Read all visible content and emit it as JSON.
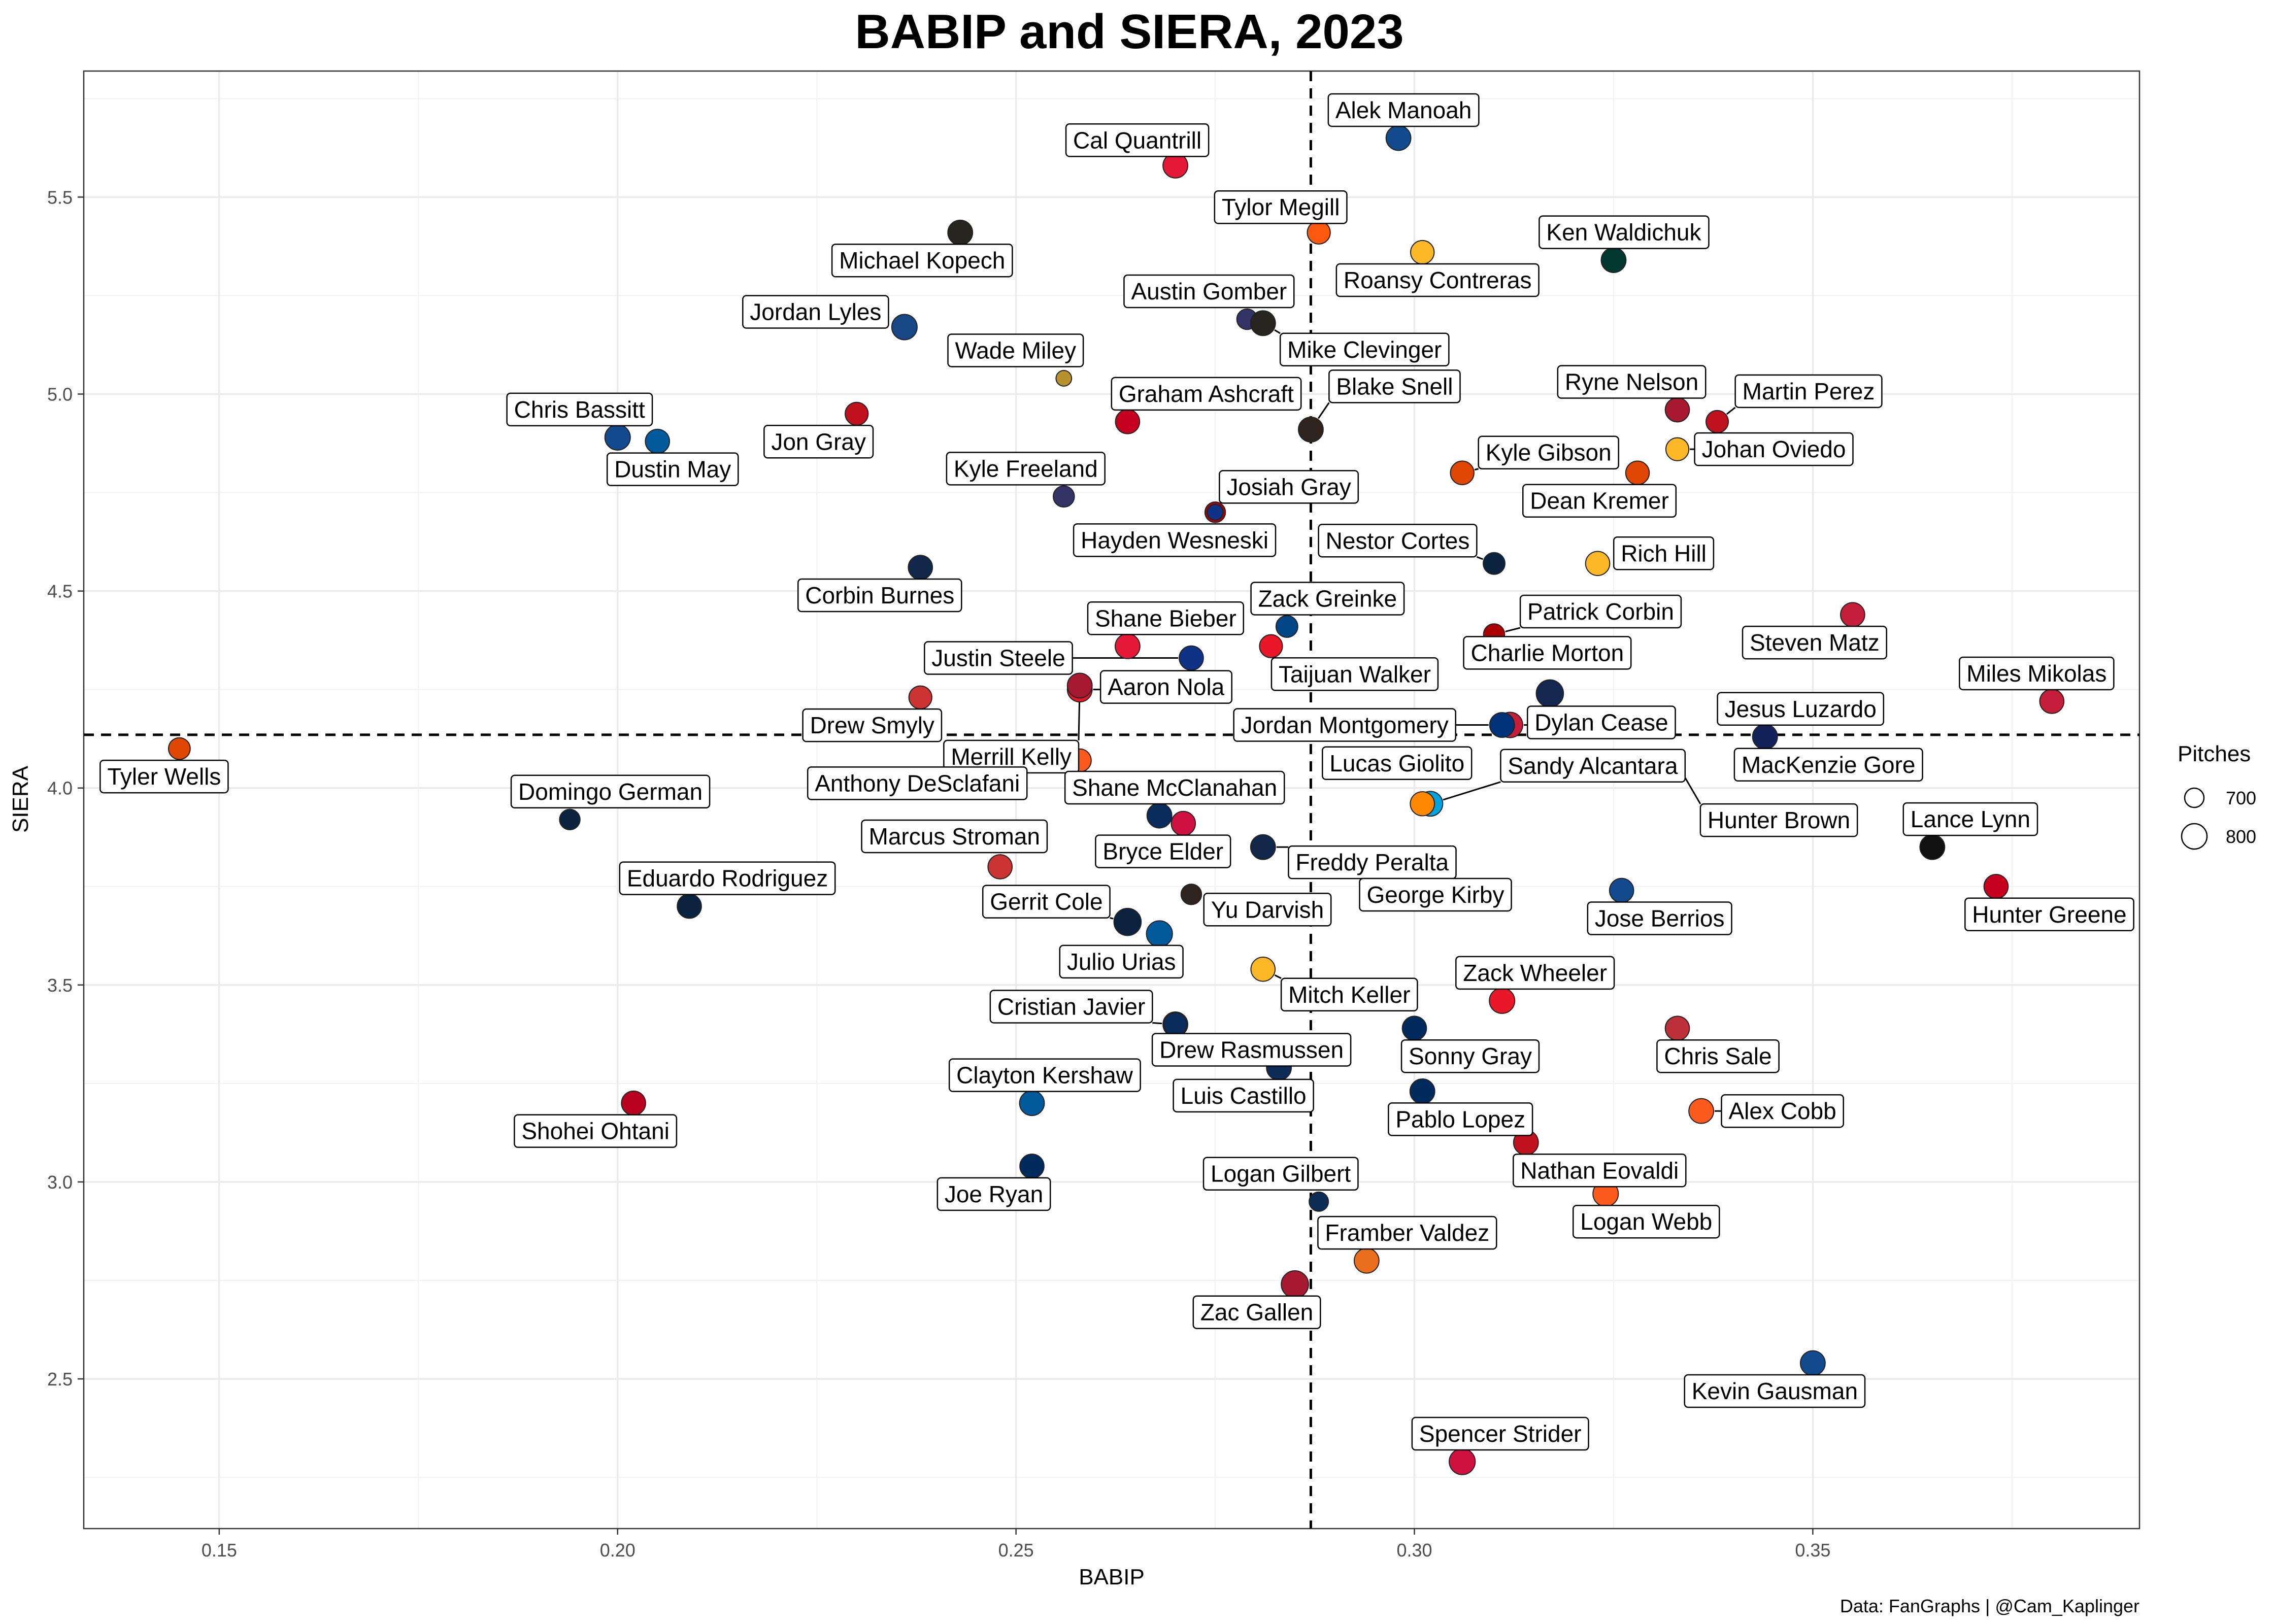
{
  "chart_data": {
    "type": "scatter",
    "title": "BABIP and SIERA, 2023",
    "xlabel": "BABIP",
    "ylabel": "SIERA",
    "caption": "Data: FanGraphs | @Cam_Kaplinger",
    "xlim": [
      0.133,
      0.391
    ],
    "ylim": [
      2.12,
      5.82
    ],
    "x_ticks": [
      0.15,
      0.2,
      0.25,
      0.3,
      0.35
    ],
    "x_tick_labels": [
      "0.15",
      "0.20",
      "0.25",
      "0.30",
      "0.35"
    ],
    "y_ticks": [
      2.5,
      3.0,
      3.5,
      4.0,
      4.5,
      5.0,
      5.5
    ],
    "y_tick_labels": [
      "2.5",
      "3.0",
      "3.5",
      "4.0",
      "4.5",
      "5.0",
      "5.5"
    ],
    "grid": true,
    "reference_lines": {
      "x": 0.287,
      "y": 4.135
    },
    "legend": {
      "title": "Pitches",
      "position": "right",
      "sizes": [
        700,
        800
      ],
      "labels": [
        "700",
        "800"
      ]
    },
    "points": [
      {
        "name": "Alek Manoah",
        "x": 0.298,
        "y": 5.65,
        "pitches": 790,
        "color": "#134A8E",
        "label_dx": 10,
        "label_dy": -55
      },
      {
        "name": "Cal Quantrill",
        "x": 0.27,
        "y": 5.58,
        "pitches": 790,
        "color": "#E31937",
        "label_dx": -75,
        "label_dy": -50
      },
      {
        "name": "Tylor Megill",
        "x": 0.288,
        "y": 5.41,
        "pitches": 760,
        "color": "#FF5910",
        "label_dx": -75,
        "label_dy": -50
      },
      {
        "name": "Michael Kopech",
        "x": 0.243,
        "y": 5.41,
        "pitches": 790,
        "color": "#27251F",
        "label_dx": -75,
        "label_dy": 55
      },
      {
        "name": "Roansy Contreras",
        "x": 0.301,
        "y": 5.36,
        "pitches": 770,
        "color": "#FDB827",
        "label_dx": 30,
        "label_dy": 55
      },
      {
        "name": "Ken Waldichuk",
        "x": 0.325,
        "y": 5.34,
        "pitches": 790,
        "color": "#003831",
        "label_dx": 20,
        "label_dy": -55
      },
      {
        "name": "Austin Gomber",
        "x": 0.279,
        "y": 5.19,
        "pitches": 720,
        "color": "#333366",
        "label_dx": -75,
        "label_dy": -55
      },
      {
        "name": "Mike Clevinger",
        "x": 0.281,
        "y": 5.18,
        "pitches": 790,
        "color": "#27251F",
        "label_dx": 200,
        "label_dy": 52
      },
      {
        "name": "Jordan Lyles",
        "x": 0.236,
        "y": 5.17,
        "pitches": 800,
        "color": "#174885",
        "label_dx": -175,
        "label_dy": -30
      },
      {
        "name": "Wade Miley",
        "x": 0.256,
        "y": 5.04,
        "pitches": 640,
        "color": "#B6922E",
        "label_dx": -95,
        "label_dy": -55
      },
      {
        "name": "Graham Ashcraft",
        "x": 0.264,
        "y": 4.93,
        "pitches": 780,
        "color": "#C6011F",
        "label_dx": 155,
        "label_dy": -55
      },
      {
        "name": "Jon Gray",
        "x": 0.23,
        "y": 4.95,
        "pitches": 760,
        "color": "#C0111F",
        "label_dx": -75,
        "label_dy": 55
      },
      {
        "name": "Ryne Nelson",
        "x": 0.333,
        "y": 4.96,
        "pitches": 780,
        "color": "#A71930",
        "label_dx": -90,
        "label_dy": -55
      },
      {
        "name": "Martin Perez",
        "x": 0.338,
        "y": 4.93,
        "pitches": 750,
        "color": "#C0111F",
        "label_dx": 180,
        "label_dy": -60
      },
      {
        "name": "Blake Snell",
        "x": 0.287,
        "y": 4.91,
        "pitches": 790,
        "color": "#2F241D",
        "label_dx": 165,
        "label_dy": -85
      },
      {
        "name": "Chris Bassitt",
        "x": 0.2,
        "y": 4.89,
        "pitches": 800,
        "color": "#134A8E",
        "label_dx": -75,
        "label_dy": -55
      },
      {
        "name": "Dustin May",
        "x": 0.205,
        "y": 4.88,
        "pitches": 780,
        "color": "#005A9C",
        "label_dx": 30,
        "label_dy": 55
      },
      {
        "name": "Johan Oviedo",
        "x": 0.333,
        "y": 4.86,
        "pitches": 760,
        "color": "#FDB827",
        "label_dx": 190,
        "label_dy": 0
      },
      {
        "name": "Kyle Gibson",
        "x": 0.306,
        "y": 4.8,
        "pitches": 770,
        "color": "#DF4601",
        "label_dx": 170,
        "label_dy": -40
      },
      {
        "name": "Dean Kremer",
        "x": 0.328,
        "y": 4.8,
        "pitches": 770,
        "color": "#DF4601",
        "label_dx": -75,
        "label_dy": 55
      },
      {
        "name": "Kyle Freeland",
        "x": 0.256,
        "y": 4.74,
        "pitches": 730,
        "color": "#333366",
        "label_dx": -75,
        "label_dy": -55
      },
      {
        "name": "Josiah Gray",
        "x": 0.275,
        "y": 4.7,
        "pitches": 720,
        "color": "#AB0003",
        "label_dx": 145,
        "label_dy": -50
      },
      {
        "name": "Hayden Wesneski",
        "x": 0.275,
        "y": 4.7,
        "pitches": 640,
        "color": "#0E3386",
        "label_dx": -80,
        "label_dy": 55
      },
      {
        "name": "Nestor Cortes",
        "x": 0.31,
        "y": 4.57,
        "pitches": 740,
        "color": "#0C2340",
        "label_dx": -190,
        "label_dy": -45
      },
      {
        "name": "Rich Hill",
        "x": 0.323,
        "y": 4.57,
        "pitches": 780,
        "color": "#FDB827",
        "label_dx": 130,
        "label_dy": -20
      },
      {
        "name": "Corbin Burnes",
        "x": 0.238,
        "y": 4.56,
        "pitches": 780,
        "color": "#12284B",
        "label_dx": -80,
        "label_dy": 55
      },
      {
        "name": "Steven Matz",
        "x": 0.355,
        "y": 4.44,
        "pitches": 780,
        "color": "#C41E3A",
        "label_dx": -75,
        "label_dy": 55
      },
      {
        "name": "Zack Greinke",
        "x": 0.284,
        "y": 4.41,
        "pitches": 740,
        "color": "#004687",
        "label_dx": 80,
        "label_dy": -55
      },
      {
        "name": "Patrick Corbin",
        "x": 0.31,
        "y": 4.39,
        "pitches": 730,
        "color": "#AB0003",
        "label_dx": 210,
        "label_dy": -45
      },
      {
        "name": "Shane Bieber",
        "x": 0.264,
        "y": 4.36,
        "pitches": 790,
        "color": "#E31937",
        "label_dx": 75,
        "label_dy": -55
      },
      {
        "name": "Taijuan Walker",
        "x": 0.282,
        "y": 4.36,
        "pitches": 760,
        "color": "#E81828",
        "label_dx": 165,
        "label_dy": 55
      },
      {
        "name": "Justin Steele",
        "x": 0.272,
        "y": 4.33,
        "pitches": 780,
        "color": "#0E3386",
        "label_dx": -380,
        "label_dy": 0
      },
      {
        "name": "Charlie Morton",
        "x": 0.317,
        "y": 4.24,
        "pitches": 830,
        "color": "#13274F",
        "label_dx": -5,
        "label_dy": -80
      },
      {
        "name": "Aaron Nola",
        "x": 0.258,
        "y": 4.25,
        "pitches": 790,
        "color": "#E81828",
        "label_dx": 170,
        "label_dy": -5
      },
      {
        "name": "Miles Mikolas",
        "x": 0.38,
        "y": 4.22,
        "pitches": 780,
        "color": "#C41E3A",
        "label_dx": -30,
        "label_dy": -55
      },
      {
        "name": "Drew Smyly",
        "x": 0.238,
        "y": 4.23,
        "pitches": 760,
        "color": "#CC3433",
        "label_dx": -95,
        "label_dy": 55
      },
      {
        "name": "Dylan Cease",
        "x": 0.312,
        "y": 4.16,
        "pitches": 800,
        "color": "#C41E3A",
        "label_dx": 180,
        "label_dy": -5
      },
      {
        "name": "Jordan Montgomery",
        "x": 0.311,
        "y": 4.16,
        "pitches": 790,
        "color": "#003278",
        "label_dx": -310,
        "label_dy": 0
      },
      {
        "name": "Merrill Kelly",
        "x": 0.258,
        "y": 4.26,
        "pitches": 790,
        "color": "#A71930",
        "label_dx": -135,
        "label_dy": 140
      },
      {
        "name": "Jesus Luzardo",
        "x": 0.344,
        "y": 4.13,
        "pitches": 790,
        "color": "#FF6600",
        "label_dx": 70,
        "label_dy": -55
      },
      {
        "name": "Tyler Wells",
        "x": 0.145,
        "y": 4.1,
        "pitches": 740,
        "color": "#DF4601",
        "label_dx": -30,
        "label_dy": 55
      },
      {
        "name": "MacKenzie Gore",
        "x": 0.344,
        "y": 4.13,
        "pitches": 790,
        "color": "#14225A",
        "label_dx": 125,
        "label_dy": 55
      },
      {
        "name": "Anthony DeSclafani",
        "x": 0.258,
        "y": 4.07,
        "pitches": 760,
        "color": "#FD5A1E",
        "label_dx": -320,
        "label_dy": 45
      },
      {
        "name": "Hunter Brown",
        "x": 0.333,
        "y": 4.06,
        "pitches": 600,
        "color": "#EB6E1F",
        "label_dx": 200,
        "label_dy": 110
      },
      {
        "name": "Sandy Alcantara",
        "x": 0.302,
        "y": 3.96,
        "pitches": 790,
        "color": "#00A3E0",
        "label_dx": 320,
        "label_dy": -75
      },
      {
        "name": "Lucas Giolito",
        "x": 0.301,
        "y": 3.96,
        "pitches": 780,
        "color": "#FF8800",
        "label_dx": -50,
        "label_dy": -80
      },
      {
        "name": "Shane McClanahan",
        "x": 0.268,
        "y": 3.93,
        "pitches": 790,
        "color": "#092C5C",
        "label_dx": 30,
        "label_dy": -55
      },
      {
        "name": "Domingo German",
        "x": 0.194,
        "y": 3.92,
        "pitches": 720,
        "color": "#0C2340",
        "label_dx": 80,
        "label_dy": -55
      },
      {
        "name": "Bryce Elder",
        "x": 0.271,
        "y": 3.91,
        "pitches": 780,
        "color": "#CE1141",
        "label_dx": -40,
        "label_dy": 55
      },
      {
        "name": "Lance Lynn",
        "x": 0.365,
        "y": 3.85,
        "pitches": 790,
        "color": "#111111",
        "label_dx": 75,
        "label_dy": -55
      },
      {
        "name": "Freddy Peralta",
        "x": 0.281,
        "y": 3.85,
        "pitches": 790,
        "color": "#12284B",
        "label_dx": 215,
        "label_dy": 30
      },
      {
        "name": "Marcus Stroman",
        "x": 0.248,
        "y": 3.8,
        "pitches": 780,
        "color": "#CC3433",
        "label_dx": -90,
        "label_dy": -60
      },
      {
        "name": "George Kirby",
        "x": 0.295,
        "y": 3.8,
        "pitches": 740,
        "color": "#0C2C56",
        "label_dx": 120,
        "label_dy": 55
      },
      {
        "name": "Hunter Greene",
        "x": 0.373,
        "y": 3.75,
        "pitches": 780,
        "color": "#C6011F",
        "label_dx": 105,
        "label_dy": 55
      },
      {
        "name": "Jose Berrios",
        "x": 0.326,
        "y": 3.74,
        "pitches": 780,
        "color": "#134A8E",
        "label_dx": 75,
        "label_dy": 55
      },
      {
        "name": "Yu Darvish",
        "x": 0.272,
        "y": 3.73,
        "pitches": 720,
        "color": "#2F241D",
        "label_dx": 150,
        "label_dy": 30
      },
      {
        "name": "Eduardo Rodriguez",
        "x": 0.209,
        "y": 3.7,
        "pitches": 780,
        "color": "#0C2340",
        "label_dx": 75,
        "label_dy": -55
      },
      {
        "name": "Gerrit Cole",
        "x": 0.264,
        "y": 3.66,
        "pitches": 830,
        "color": "#0C2340",
        "label_dx": -160,
        "label_dy": -40
      },
      {
        "name": "Julio Urias",
        "x": 0.268,
        "y": 3.63,
        "pitches": 810,
        "color": "#005A9C",
        "label_dx": -75,
        "label_dy": 55
      },
      {
        "name": "Mitch Keller",
        "x": 0.281,
        "y": 3.54,
        "pitches": 780,
        "color": "#FDB827",
        "label_dx": 170,
        "label_dy": 50
      },
      {
        "name": "Zack Wheeler",
        "x": 0.311,
        "y": 3.46,
        "pitches": 800,
        "color": "#E81828",
        "label_dx": 65,
        "label_dy": -55
      },
      {
        "name": "Cristian Javier",
        "x": 0.27,
        "y": 3.4,
        "pitches": 790,
        "color": "#002D62",
        "label_dx": -205,
        "label_dy": -35
      },
      {
        "name": "Drew Rasmussen",
        "x": 0.27,
        "y": 3.4,
        "pitches": 760,
        "color": "#092C5C",
        "label_dx": 150,
        "label_dy": 50
      },
      {
        "name": "Chris Sale",
        "x": 0.333,
        "y": 3.39,
        "pitches": 780,
        "color": "#BD3039",
        "label_dx": 80,
        "label_dy": 55
      },
      {
        "name": "Sonny Gray",
        "x": 0.3,
        "y": 3.39,
        "pitches": 780,
        "color": "#002B5C",
        "label_dx": 110,
        "label_dy": 55
      },
      {
        "name": "Luis Castillo",
        "x": 0.283,
        "y": 3.29,
        "pitches": 790,
        "color": "#0C2C56",
        "label_dx": -70,
        "label_dy": 55
      },
      {
        "name": "Pablo Lopez",
        "x": 0.301,
        "y": 3.23,
        "pitches": 790,
        "color": "#002B5C",
        "label_dx": 75,
        "label_dy": 55
      },
      {
        "name": "Shohei Ohtani",
        "x": 0.202,
        "y": 3.2,
        "pitches": 780,
        "color": "#BA0021",
        "label_dx": -75,
        "label_dy": 55
      },
      {
        "name": "Clayton Kershaw",
        "x": 0.252,
        "y": 3.2,
        "pitches": 790,
        "color": "#005A9C",
        "label_dx": 25,
        "label_dy": -55
      },
      {
        "name": "Alex Cobb",
        "x": 0.336,
        "y": 3.18,
        "pitches": 790,
        "color": "#FD5A1E",
        "label_dx": 160,
        "label_dy": 0
      },
      {
        "name": "Nathan Eovaldi",
        "x": 0.314,
        "y": 3.1,
        "pitches": 790,
        "color": "#C0111F",
        "label_dx": 145,
        "label_dy": 55
      },
      {
        "name": "Joe Ryan",
        "x": 0.252,
        "y": 3.04,
        "pitches": 780,
        "color": "#002B5C",
        "label_dx": -75,
        "label_dy": 55
      },
      {
        "name": "Logan Webb",
        "x": 0.324,
        "y": 2.97,
        "pitches": 800,
        "color": "#FD5A1E",
        "label_dx": 80,
        "label_dy": 55
      },
      {
        "name": "Logan Gilbert",
        "x": 0.288,
        "y": 2.95,
        "pitches": 700,
        "color": "#0C2C56",
        "label_dx": -75,
        "label_dy": -55
      },
      {
        "name": "Framber Valdez",
        "x": 0.294,
        "y": 2.8,
        "pitches": 790,
        "color": "#EB6E1F",
        "label_dx": 80,
        "label_dy": -55
      },
      {
        "name": "Zac Gallen",
        "x": 0.285,
        "y": 2.74,
        "pitches": 830,
        "color": "#A71930",
        "label_dx": -75,
        "label_dy": 55
      },
      {
        "name": "Kevin Gausman",
        "x": 0.35,
        "y": 2.54,
        "pitches": 790,
        "color": "#134A8E",
        "label_dx": -75,
        "label_dy": 55
      },
      {
        "name": "Spencer Strider",
        "x": 0.306,
        "y": 2.29,
        "pitches": 810,
        "color": "#CE1141",
        "label_dx": 75,
        "label_dy": -55
      }
    ]
  }
}
